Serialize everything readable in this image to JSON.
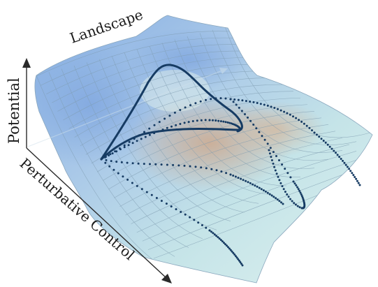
{
  "labels": {
    "landscape": "Landscape",
    "potential": "Potential",
    "perturbative_control": "Perturbative Control"
  },
  "colors": {
    "surface_blue": "#9dbde6",
    "surface_cyan": "#c4e6ea",
    "surface_warm": "#d4b9a3",
    "grid": "#7f9cb0",
    "trajectory": "#163b63",
    "axis": "#2a2a2a"
  },
  "trajectories": {
    "start_point": "left-valley-pocket",
    "solid_loop": "arc up over the central ridge and back",
    "dotted_paths": 5
  }
}
